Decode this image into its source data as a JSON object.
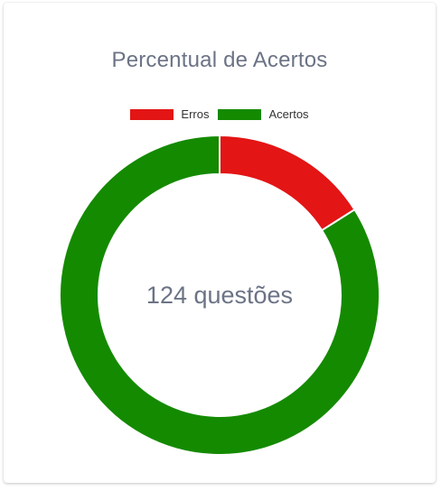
{
  "chart_data": {
    "type": "pie",
    "title": "Percentual de Acertos",
    "legend_position": "top",
    "categories": [
      "Erros",
      "Acertos"
    ],
    "values": [
      16,
      84
    ],
    "colors": [
      "#e31515",
      "#148a00"
    ],
    "center_label": "124 questões"
  }
}
